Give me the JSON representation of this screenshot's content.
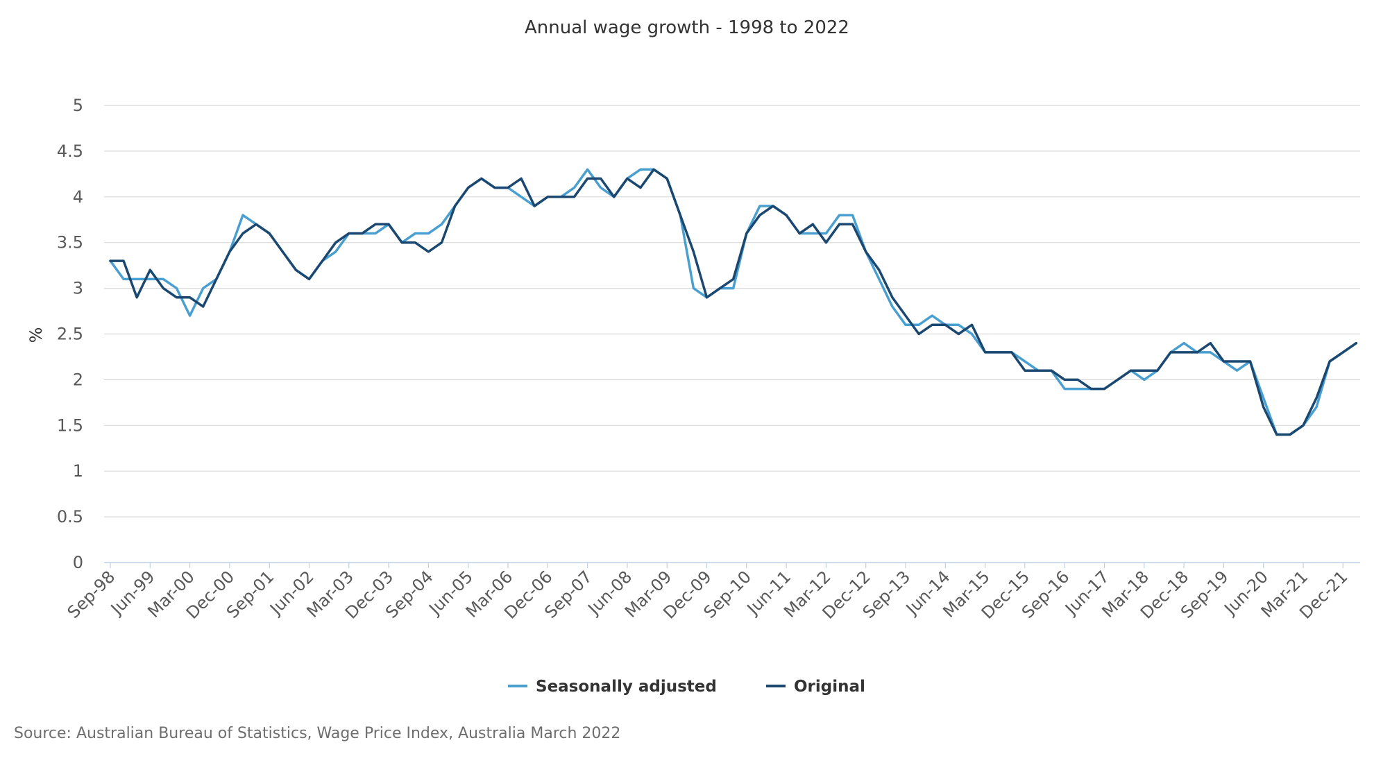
{
  "chart_data": {
    "type": "line",
    "title": "Annual wage growth - 1998 to 2022",
    "xlabel": "",
    "ylabel": "%",
    "ylim": [
      0,
      5
    ],
    "yticks": [
      "0",
      "0.5",
      "1",
      "1.5",
      "2",
      "2.5",
      "3",
      "3.5",
      "4",
      "4.5",
      "5"
    ],
    "x_start": "Sep-98",
    "x_tick_labels": [
      "Sep-98",
      "Jun-99",
      "Mar-00",
      "Dec-00",
      "Sep-01",
      "Jun-02",
      "Mar-03",
      "Dec-03",
      "Sep-04",
      "Jun-05",
      "Mar-06",
      "Dec-06",
      "Sep-07",
      "Jun-08",
      "Mar-09",
      "Dec-09",
      "Sep-10",
      "Jun-11",
      "Mar-12",
      "Dec-12",
      "Sep-13",
      "Jun-14",
      "Mar-15",
      "Dec-15",
      "Sep-16",
      "Jun-17",
      "Mar-18",
      "Dec-18",
      "Sep-19",
      "Jun-20",
      "Mar-21",
      "Dec-21"
    ],
    "grid": true,
    "legend_position": "bottom",
    "series": [
      {
        "name": "Seasonally adjusted",
        "color": "#4a9fd1",
        "values": [
          3.3,
          3.1,
          3.1,
          3.1,
          3.1,
          3.0,
          2.7,
          3.0,
          3.1,
          3.4,
          3.8,
          3.7,
          3.6,
          3.4,
          3.2,
          3.1,
          3.3,
          3.4,
          3.6,
          3.6,
          3.6,
          3.7,
          3.5,
          3.6,
          3.6,
          3.7,
          3.9,
          4.1,
          4.2,
          4.1,
          4.1,
          4.0,
          3.9,
          4.0,
          4.0,
          4.1,
          4.3,
          4.1,
          4.0,
          4.2,
          4.3,
          4.3,
          4.2,
          3.8,
          3.0,
          2.9,
          3.0,
          3.0,
          3.6,
          3.9,
          3.9,
          3.8,
          3.6,
          3.6,
          3.6,
          3.8,
          3.8,
          3.4,
          3.1,
          2.8,
          2.6,
          2.6,
          2.7,
          2.6,
          2.6,
          2.5,
          2.3,
          2.3,
          2.3,
          2.2,
          2.1,
          2.1,
          1.9,
          1.9,
          1.9,
          1.9,
          2.0,
          2.1,
          2.0,
          2.1,
          2.3,
          2.4,
          2.3,
          2.3,
          2.2,
          2.1,
          2.2,
          1.8,
          1.4,
          1.4,
          1.5,
          1.7,
          2.2,
          2.3,
          2.4
        ]
      },
      {
        "name": "Original",
        "color": "#1b4870",
        "values": [
          3.3,
          3.3,
          2.9,
          3.2,
          3.0,
          2.9,
          2.9,
          2.8,
          3.1,
          3.4,
          3.6,
          3.7,
          3.6,
          3.4,
          3.2,
          3.1,
          3.3,
          3.5,
          3.6,
          3.6,
          3.7,
          3.7,
          3.5,
          3.5,
          3.4,
          3.5,
          3.9,
          4.1,
          4.2,
          4.1,
          4.1,
          4.2,
          3.9,
          4.0,
          4.0,
          4.0,
          4.2,
          4.2,
          4.0,
          4.2,
          4.1,
          4.3,
          4.2,
          3.8,
          3.4,
          2.9,
          3.0,
          3.1,
          3.6,
          3.8,
          3.9,
          3.8,
          3.6,
          3.7,
          3.5,
          3.7,
          3.7,
          3.4,
          3.2,
          2.9,
          2.7,
          2.5,
          2.6,
          2.6,
          2.5,
          2.6,
          2.3,
          2.3,
          2.3,
          2.1,
          2.1,
          2.1,
          2.0,
          2.0,
          1.9,
          1.9,
          2.0,
          2.1,
          2.1,
          2.1,
          2.3,
          2.3,
          2.3,
          2.4,
          2.2,
          2.2,
          2.2,
          1.7,
          1.4,
          1.4,
          1.5,
          1.8,
          2.2,
          2.3,
          2.4
        ]
      }
    ]
  },
  "source": "Source: Australian Bureau of Statistics, Wage Price Index, Australia March 2022"
}
